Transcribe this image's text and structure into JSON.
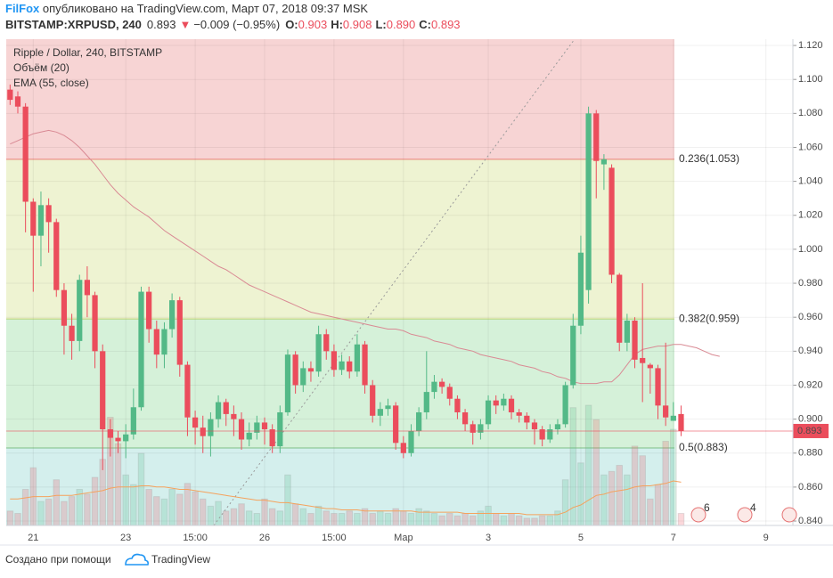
{
  "header": {
    "author": "FilFox",
    "published": " опубликовано на TradingView.com, Март 07, 2018 09:37 MSK",
    "symbol": "BITSTAMP:XRPUSD, 240",
    "last": "0.893",
    "direction": "▼",
    "change": "−0.009 (−0.95%)",
    "ohlc": [
      {
        "label": "O:",
        "value": "0.903"
      },
      {
        "label": "H:",
        "value": "0.908"
      },
      {
        "label": "L:",
        "value": "0.890"
      },
      {
        "label": "C:",
        "value": "0.893"
      }
    ]
  },
  "chart_data": {
    "type": "candlestick",
    "title": "Ripple / Dollar, 240, BITSTAMP",
    "categories": [
      null,
      null,
      null,
      "21",
      null,
      null,
      null,
      null,
      null,
      null,
      null,
      null,
      null,
      null,
      null,
      "23",
      null,
      null,
      null,
      null,
      null,
      null,
      null,
      null,
      "15:00",
      null,
      null,
      null,
      null,
      null,
      null,
      null,
      null,
      "26",
      null,
      null,
      null,
      null,
      null,
      null,
      null,
      null,
      "15:00",
      null,
      null,
      null,
      null,
      null,
      null,
      null,
      null,
      "Мар",
      null,
      null,
      null,
      null,
      null,
      null,
      null,
      null,
      null,
      null,
      "3",
      null,
      null,
      null,
      null,
      null,
      null,
      null,
      null,
      null,
      null,
      null,
      "5",
      null,
      null,
      null,
      null,
      null,
      null,
      null,
      null,
      null,
      null,
      null,
      "7",
      null,
      null,
      null,
      null,
      null,
      null,
      null,
      null,
      null,
      null,
      null,
      "9",
      null,
      null,
      null
    ],
    "open": [
      1.094,
      1.09,
      1.084,
      1.028,
      1.008,
      1.026,
      1.016,
      0.976,
      0.955,
      0.946,
      0.982,
      0.973,
      0.94,
      0.894,
      0.889,
      0.887,
      0.891,
      0.907,
      0.975,
      0.953,
      0.938,
      0.953,
      0.97,
      0.932,
      0.901,
      0.895,
      0.89,
      0.9,
      0.91,
      0.903,
      0.9,
      0.888,
      0.892,
      0.898,
      0.894,
      0.884,
      0.904,
      0.938,
      0.92,
      0.93,
      0.928,
      0.95,
      0.94,
      0.929,
      0.934,
      0.928,
      0.944,
      0.92,
      0.902,
      0.906,
      0.908,
      0.886,
      0.88,
      0.893,
      0.904,
      0.916,
      0.922,
      0.919,
      0.912,
      0.904,
      0.897,
      0.892,
      0.897,
      0.911,
      0.908,
      0.912,
      0.904,
      0.902,
      0.898,
      0.894,
      0.888,
      0.894,
      0.897,
      0.92,
      0.955,
      0.976,
      1.08,
      1.05,
      1.048,
      0.985,
      0.945,
      0.958,
      0.936,
      0.932,
      0.93,
      0.908,
      0.899,
      0.903,
      null,
      null,
      null,
      null,
      null,
      null,
      null,
      null,
      null,
      null,
      null,
      null,
      null,
      null
    ],
    "high": [
      1.097,
      1.093,
      1.086,
      1.03,
      1.034,
      1.03,
      1.018,
      0.98,
      0.962,
      0.985,
      0.99,
      0.975,
      0.944,
      0.9,
      0.893,
      0.897,
      0.918,
      0.978,
      0.978,
      0.958,
      0.957,
      0.974,
      0.972,
      0.934,
      0.905,
      0.902,
      0.904,
      0.914,
      0.912,
      0.908,
      0.904,
      0.898,
      0.902,
      0.901,
      0.897,
      0.908,
      0.941,
      0.94,
      0.934,
      0.934,
      0.955,
      0.953,
      0.944,
      0.938,
      0.937,
      0.95,
      0.946,
      0.923,
      0.91,
      0.912,
      0.91,
      0.89,
      0.897,
      0.907,
      0.94,
      0.926,
      0.924,
      0.921,
      0.914,
      0.906,
      0.899,
      0.9,
      0.914,
      0.914,
      0.915,
      0.914,
      0.906,
      0.904,
      0.9,
      0.896,
      0.897,
      0.9,
      0.922,
      0.962,
      1.008,
      1.084,
      1.082,
      1.056,
      1.05,
      0.986,
      0.962,
      0.96,
      0.98,
      0.933,
      0.932,
      0.945,
      0.91,
      0.908,
      null,
      null,
      null,
      null,
      null,
      null,
      null,
      null,
      null,
      null,
      null,
      null,
      null,
      null
    ],
    "low": [
      1.085,
      1.08,
      1.01,
      0.975,
      0.99,
      0.998,
      0.972,
      0.938,
      0.935,
      0.94,
      0.96,
      0.93,
      0.87,
      0.878,
      0.88,
      0.877,
      0.888,
      0.905,
      0.945,
      0.93,
      0.93,
      0.948,
      0.925,
      0.89,
      0.885,
      0.88,
      0.878,
      0.895,
      0.896,
      0.89,
      0.882,
      0.884,
      0.888,
      0.885,
      0.88,
      0.88,
      0.902,
      0.915,
      0.916,
      0.922,
      0.925,
      0.935,
      0.925,
      0.926,
      0.924,
      0.925,
      0.915,
      0.898,
      0.896,
      0.902,
      0.882,
      0.877,
      0.878,
      0.89,
      0.9,
      0.912,
      0.915,
      0.908,
      0.9,
      0.893,
      0.885,
      0.888,
      0.894,
      0.903,
      0.905,
      0.9,
      0.898,
      0.894,
      0.885,
      0.884,
      0.886,
      0.891,
      0.895,
      0.918,
      0.95,
      0.968,
      1.03,
      1.035,
      0.98,
      0.94,
      0.94,
      0.93,
      0.91,
      0.915,
      0.9,
      0.896,
      0.899,
      0.89,
      null,
      null,
      null,
      null,
      null,
      null,
      null,
      null,
      null,
      null,
      null,
      null,
      null,
      null
    ],
    "close": [
      1.088,
      1.084,
      1.028,
      1.008,
      1.026,
      1.016,
      0.976,
      0.955,
      0.946,
      0.982,
      0.973,
      0.94,
      0.894,
      0.889,
      0.887,
      0.891,
      0.907,
      0.975,
      0.953,
      0.938,
      0.953,
      0.97,
      0.932,
      0.901,
      0.895,
      0.89,
      0.9,
      0.91,
      0.903,
      0.9,
      0.888,
      0.892,
      0.898,
      0.894,
      0.884,
      0.904,
      0.938,
      0.92,
      0.93,
      0.928,
      0.95,
      0.94,
      0.929,
      0.934,
      0.928,
      0.944,
      0.92,
      0.902,
      0.906,
      0.908,
      0.886,
      0.88,
      0.893,
      0.904,
      0.916,
      0.922,
      0.919,
      0.912,
      0.904,
      0.897,
      0.892,
      0.897,
      0.911,
      0.908,
      0.912,
      0.904,
      0.902,
      0.898,
      0.894,
      0.888,
      0.894,
      0.897,
      0.92,
      0.955,
      0.998,
      1.08,
      1.052,
      1.053,
      0.985,
      0.945,
      0.958,
      0.935,
      0.933,
      0.93,
      0.908,
      0.901,
      0.902,
      0.893,
      null,
      null,
      null,
      null,
      null,
      null,
      null,
      null,
      null,
      null,
      null,
      null,
      null,
      null
    ],
    "up_color": "#53b987",
    "down_color": "#eb4d5c",
    "volume": {
      "name": "Объём (20)",
      "ma_color": "#f5a25d",
      "values": [
        12,
        10,
        30,
        48,
        20,
        22,
        38,
        20,
        24,
        30,
        26,
        40,
        55,
        90,
        68,
        42,
        34,
        60,
        30,
        24,
        22,
        30,
        26,
        35,
        28,
        22,
        16,
        20,
        12,
        14,
        18,
        12,
        10,
        22,
        14,
        12,
        42,
        18,
        14,
        10,
        16,
        12,
        10,
        10,
        12,
        10,
        14,
        10,
        12,
        10,
        14,
        12,
        10,
        14,
        12,
        10,
        8,
        10,
        8,
        10,
        8,
        12,
        16,
        10,
        8,
        10,
        8,
        6,
        6,
        8,
        8,
        12,
        38,
        98,
        52,
        100,
        88,
        42,
        45,
        50,
        42,
        66,
        58,
        22,
        34,
        70,
        80,
        10,
        null,
        null,
        null,
        null,
        null,
        null,
        null,
        null,
        null,
        null,
        null,
        null,
        null,
        null
      ],
      "ma": [
        22,
        22,
        23,
        24,
        24,
        24,
        25,
        25,
        25,
        26,
        27,
        28,
        29,
        31,
        32,
        32,
        32,
        33,
        33,
        32,
        32,
        31,
        30,
        30,
        29,
        28,
        27,
        26,
        25,
        24,
        23,
        22,
        21,
        21,
        20,
        19,
        19,
        18,
        17,
        16,
        15,
        14,
        14,
        13,
        13,
        13,
        12,
        12,
        12,
        12,
        12,
        12,
        12,
        11,
        11,
        11,
        11,
        11,
        11,
        10,
        10,
        10,
        10,
        10,
        10,
        10,
        10,
        9,
        9,
        9,
        9,
        9,
        11,
        15,
        17,
        21,
        25,
        26,
        28,
        29,
        30,
        32,
        33,
        33,
        34,
        35,
        37,
        36,
        null,
        null,
        null,
        null,
        null,
        null,
        null,
        null,
        null,
        null,
        null,
        null,
        null,
        null
      ]
    },
    "ema": {
      "name": "EMA (55, close)",
      "color": "#d98a94",
      "values": [
        1.062,
        1.064,
        1.066,
        1.068,
        1.069,
        1.07,
        1.069,
        1.067,
        1.064,
        1.06,
        1.055,
        1.05,
        1.044,
        1.038,
        1.033,
        1.029,
        1.025,
        1.022,
        1.019,
        1.015,
        1.011,
        1.008,
        1.005,
        1.002,
        0.999,
        0.996,
        0.993,
        0.99,
        0.988,
        0.985,
        0.982,
        0.979,
        0.977,
        0.975,
        0.973,
        0.971,
        0.969,
        0.967,
        0.965,
        0.963,
        0.962,
        0.961,
        0.96,
        0.959,
        0.958,
        0.957,
        0.956,
        0.955,
        0.954,
        0.953,
        0.953,
        0.952,
        0.95,
        0.949,
        0.948,
        0.946,
        0.945,
        0.944,
        0.942,
        0.941,
        0.94,
        0.938,
        0.937,
        0.936,
        0.935,
        0.934,
        0.932,
        0.931,
        0.93,
        0.928,
        0.927,
        0.925,
        0.924,
        0.922,
        0.921,
        0.921,
        0.921,
        0.922,
        0.922,
        0.926,
        0.932,
        0.938,
        0.941,
        0.942,
        0.943,
        0.943,
        0.944,
        0.944,
        0.943,
        0.942,
        0.94,
        0.938,
        0.937,
        null,
        null,
        null,
        null,
        null,
        null,
        null,
        null,
        null
      ]
    },
    "fib_levels": [
      {
        "value": 1.053,
        "label": "0.236(1.053)",
        "color": "#e53935"
      },
      {
        "value": 0.959,
        "label": "0.382(0.959)",
        "color": "#9bbd2a"
      },
      {
        "value": 0.883,
        "label": "0.5(0.883)",
        "color": "#43a047"
      }
    ],
    "zone_colors": [
      "#f7d4d4",
      "#eef3d2",
      "#d5f1d9",
      "#d4efed"
    ],
    "ylim": [
      0.8374,
      1.1237
    ],
    "yticks": [
      {
        "value": 0.84,
        "label": "0.840"
      },
      {
        "value": 0.86,
        "label": "0.860"
      },
      {
        "value": 0.88,
        "label": "0.880"
      },
      {
        "value": 0.9,
        "label": "0.900"
      },
      {
        "value": 0.92,
        "label": "0.920"
      },
      {
        "value": 0.94,
        "label": "0.940"
      },
      {
        "value": 0.96,
        "label": "0.960"
      },
      {
        "value": 0.98,
        "label": "0.980"
      },
      {
        "value": 1.0,
        "label": "1.000"
      },
      {
        "value": 1.02,
        "label": "1.020"
      },
      {
        "value": 1.04,
        "label": "1.040"
      },
      {
        "value": 1.06,
        "label": "1.060"
      },
      {
        "value": 1.08,
        "label": "1.080"
      },
      {
        "value": 1.1,
        "label": "1.100"
      },
      {
        "value": 1.12,
        "label": "1.120"
      }
    ],
    "grid": true
  },
  "events": [
    "6",
    "4"
  ],
  "footer": {
    "text": "Создано при помощи",
    "brand": "TradingView"
  }
}
